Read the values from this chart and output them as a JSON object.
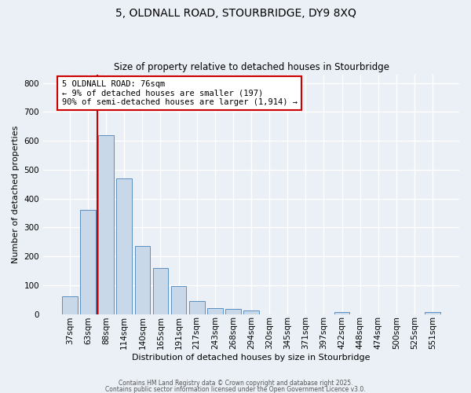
{
  "title_line1": "5, OLDNALL ROAD, STOURBRIDGE, DY9 8XQ",
  "title_line2": "Size of property relative to detached houses in Stourbridge",
  "xlabel": "Distribution of detached houses by size in Stourbridge",
  "ylabel": "Number of detached properties",
  "bar_labels": [
    "37sqm",
    "63sqm",
    "88sqm",
    "114sqm",
    "140sqm",
    "165sqm",
    "191sqm",
    "217sqm",
    "243sqm",
    "268sqm",
    "294sqm",
    "320sqm",
    "345sqm",
    "371sqm",
    "397sqm",
    "422sqm",
    "448sqm",
    "474sqm",
    "500sqm",
    "525sqm",
    "551sqm"
  ],
  "bar_values": [
    60,
    360,
    620,
    470,
    235,
    160,
    98,
    46,
    20,
    18,
    13,
    0,
    0,
    0,
    0,
    6,
    0,
    0,
    0,
    0,
    6
  ],
  "bar_color": "#c8d8e8",
  "bar_edgecolor": "#5a8fc0",
  "vline_x": 1.5,
  "vline_color": "#cc0000",
  "annotation_text": "5 OLDNALL ROAD: 76sqm\n← 9% of detached houses are smaller (197)\n90% of semi-detached houses are larger (1,914) →",
  "annotation_box_edgecolor": "#cc0000",
  "annotation_box_facecolor": "#ffffff",
  "ylim": [
    0,
    830
  ],
  "yticks": [
    0,
    100,
    200,
    300,
    400,
    500,
    600,
    700,
    800
  ],
  "bg_color": "#eaf0f6",
  "grid_color": "#ffffff",
  "footer_line1": "Contains HM Land Registry data © Crown copyright and database right 2025.",
  "footer_line2": "Contains public sector information licensed under the Open Government Licence v3.0."
}
